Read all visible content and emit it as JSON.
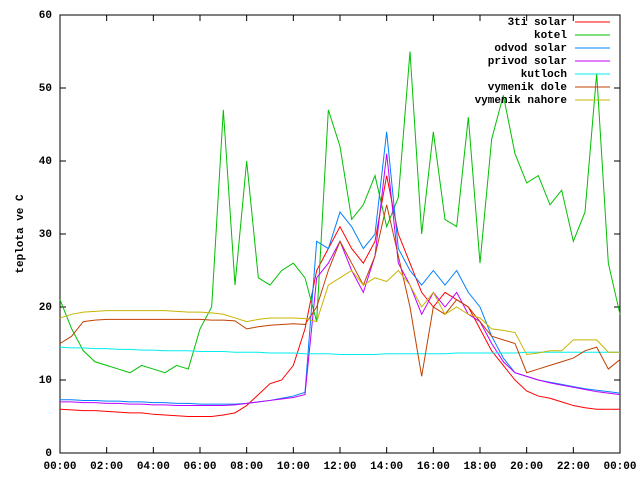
{
  "chart_data": {
    "type": "line",
    "ylabel": "teplota ve C",
    "x": [
      0,
      0.5,
      1,
      1.5,
      2,
      2.5,
      3,
      3.5,
      4,
      4.5,
      5,
      5.5,
      6,
      6.5,
      7,
      7.5,
      8,
      8.5,
      9,
      9.5,
      10,
      10.5,
      11,
      11.5,
      12,
      12.5,
      13,
      13.5,
      14,
      14.5,
      15,
      15.5,
      16,
      16.5,
      17,
      17.5,
      18,
      18.5,
      19,
      19.5,
      20,
      20.5,
      21,
      21.5,
      22,
      22.5,
      23,
      23.5,
      24
    ],
    "xlim": [
      0,
      24
    ],
    "xticks": [
      {
        "value": 0,
        "label": "00:00"
      },
      {
        "value": 2,
        "label": "02:00"
      },
      {
        "value": 4,
        "label": "04:00"
      },
      {
        "value": 6,
        "label": "06:00"
      },
      {
        "value": 8,
        "label": "08:00"
      },
      {
        "value": 10,
        "label": "10:00"
      },
      {
        "value": 12,
        "label": "12:00"
      },
      {
        "value": 14,
        "label": "14:00"
      },
      {
        "value": 16,
        "label": "16:00"
      },
      {
        "value": 18,
        "label": "18:00"
      },
      {
        "value": 20,
        "label": "20:00"
      },
      {
        "value": 22,
        "label": "22:00"
      },
      {
        "value": 24,
        "label": "00:00"
      }
    ],
    "ylim": [
      0,
      60
    ],
    "yticks": [
      0,
      10,
      20,
      30,
      40,
      50,
      60
    ],
    "grid": false,
    "legend": "top-right",
    "series": [
      {
        "name": "3ti solar",
        "color": "#ff0000",
        "values": [
          6,
          5.9,
          5.8,
          5.8,
          5.7,
          5.6,
          5.5,
          5.5,
          5.3,
          5.2,
          5.1,
          5,
          5,
          5,
          5.2,
          5.5,
          6.5,
          8,
          9.5,
          10,
          12,
          17,
          25,
          28,
          31,
          28,
          26,
          29,
          38,
          30,
          26,
          22,
          20,
          22,
          21,
          20,
          17,
          14,
          12,
          10,
          8.5,
          7.8,
          7.5,
          7,
          6.5,
          6.2,
          6,
          6,
          6
        ]
      },
      {
        "name": "kotel",
        "color": "#00c000",
        "values": [
          21,
          17,
          14,
          12.5,
          12,
          11.5,
          11,
          12,
          11.5,
          11,
          12,
          11.5,
          17,
          20,
          47,
          23,
          40,
          24,
          23,
          25,
          26,
          24,
          18,
          47,
          42,
          32,
          34,
          38,
          31,
          35,
          55,
          30,
          44,
          32,
          31,
          46,
          26,
          43,
          49,
          41,
          37,
          38,
          34,
          36,
          29,
          33,
          52,
          26,
          19
        ]
      },
      {
        "name": "odvod solar",
        "color": "#0080ff",
        "values": [
          7.3,
          7.3,
          7.2,
          7.2,
          7.1,
          7.1,
          7,
          7,
          6.9,
          6.9,
          6.8,
          6.8,
          6.7,
          6.7,
          6.7,
          6.7,
          6.8,
          7,
          7.2,
          7.5,
          7.8,
          8.3,
          29,
          28,
          33,
          31,
          28,
          30,
          44,
          28,
          25,
          23,
          25,
          23,
          25,
          22,
          20,
          16,
          13,
          11,
          10.5,
          10,
          9.7,
          9.4,
          9.1,
          8.8,
          8.6,
          8.4,
          8.2
        ]
      },
      {
        "name": "privod solar",
        "color": "#c000ff",
        "values": [
          7,
          7,
          6.9,
          6.9,
          6.8,
          6.8,
          6.7,
          6.7,
          6.6,
          6.6,
          6.5,
          6.5,
          6.5,
          6.5,
          6.5,
          6.6,
          6.8,
          7,
          7.2,
          7.4,
          7.6,
          8,
          24,
          26,
          29,
          25,
          22,
          27,
          41,
          26,
          23,
          19,
          22,
          20,
          22,
          19,
          18,
          15,
          12.5,
          11,
          10.5,
          10,
          9.6,
          9.3,
          9,
          8.7,
          8.4,
          8.2,
          8
        ]
      },
      {
        "name": "kutloch",
        "color": "#00eeee",
        "values": [
          14.5,
          14.4,
          14.4,
          14.3,
          14.3,
          14.2,
          14.2,
          14.1,
          14.1,
          14,
          14,
          14,
          13.9,
          13.9,
          13.9,
          13.8,
          13.8,
          13.8,
          13.7,
          13.7,
          13.7,
          13.6,
          13.6,
          13.6,
          13.5,
          13.5,
          13.5,
          13.5,
          13.6,
          13.6,
          13.6,
          13.6,
          13.6,
          13.6,
          13.7,
          13.7,
          13.7,
          13.7,
          13.7,
          13.7,
          13.8,
          13.8,
          13.8,
          13.8,
          13.8,
          13.8,
          13.8,
          13.8,
          13.8
        ]
      },
      {
        "name": "vymenik dole",
        "color": "#c04000",
        "values": [
          15,
          16,
          18,
          18.2,
          18.3,
          18.3,
          18.3,
          18.3,
          18.3,
          18.3,
          18.3,
          18.3,
          18.3,
          18.2,
          18.2,
          18.1,
          17,
          17.3,
          17.5,
          17.6,
          17.7,
          17.6,
          20,
          25,
          29,
          26,
          23,
          27,
          34,
          27,
          20,
          10.5,
          20,
          19,
          21,
          20,
          18,
          16,
          15.5,
          15,
          11,
          11.5,
          12,
          12.5,
          13,
          14,
          14.5,
          11.5,
          12.8
        ]
      },
      {
        "name": "vymenik nahore",
        "color": "#c8b400",
        "values": [
          18.5,
          19,
          19.3,
          19.4,
          19.5,
          19.5,
          19.5,
          19.5,
          19.5,
          19.5,
          19.4,
          19.3,
          19.3,
          19.2,
          19,
          18.5,
          18,
          18.3,
          18.5,
          18.5,
          18.5,
          18.4,
          18,
          23,
          24,
          25,
          23,
          24,
          23.5,
          25,
          23,
          20,
          22,
          19,
          20,
          19,
          18.5,
          17,
          16.8,
          16.5,
          13.5,
          13.7,
          14,
          14,
          15.5,
          15.5,
          15.5,
          13.8,
          13.8
        ]
      }
    ]
  }
}
